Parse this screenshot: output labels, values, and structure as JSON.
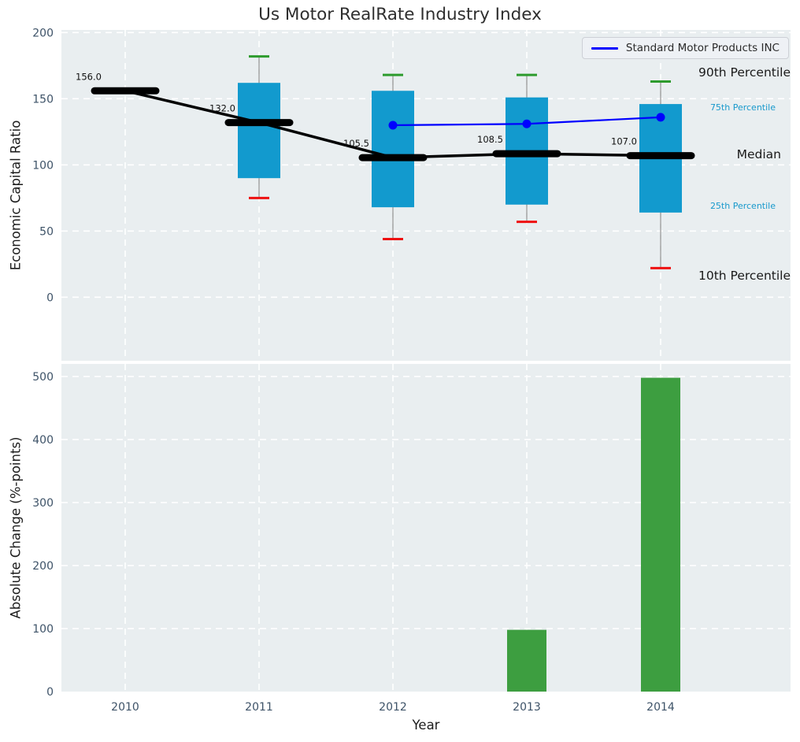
{
  "figure": {
    "title": "Us Motor RealRate Industry Index",
    "background": "#ffffff",
    "plot_background": "#e9eef0"
  },
  "colors": {
    "box_fill": "#129ace",
    "median_line": "#000000",
    "company_line": "#0000ff",
    "p90_cap": "#2d9b2d",
    "p10_cap": "#ee1111",
    "whisker": "#909090",
    "bar_fill": "#3d9e40",
    "grid": "#ffffff",
    "tick_label": "#3e5368",
    "annotation_small": "#1899cc",
    "annotation_large": "#1a1a1a"
  },
  "chart_data": [
    {
      "type": "box",
      "title": "Us Motor RealRate Industry Index",
      "ylabel": "Economic Capital Ratio",
      "categories": [
        "2010",
        "2011",
        "2012",
        "2013",
        "2014"
      ],
      "yticks": [
        0,
        50,
        100,
        150,
        200
      ],
      "ylim": [
        -48,
        202
      ],
      "grid": true,
      "legend": {
        "label": "Standard Motor Products INC",
        "position": "upper right"
      },
      "series": [
        {
          "name": "90th Percentile",
          "values": [
            null,
            182,
            168,
            168,
            163
          ]
        },
        {
          "name": "75th Percentile",
          "values": [
            null,
            162,
            156,
            151,
            146
          ]
        },
        {
          "name": "Median",
          "values": [
            156.0,
            132.0,
            105.5,
            108.5,
            107.0
          ]
        },
        {
          "name": "25th Percentile",
          "values": [
            null,
            90,
            68,
            70,
            64
          ]
        },
        {
          "name": "10th Percentile",
          "values": [
            null,
            75,
            44,
            57,
            22
          ]
        },
        {
          "name": "Standard Motor Products INC",
          "values": [
            null,
            null,
            130,
            131,
            136
          ]
        }
      ],
      "median_labels": [
        "156.0",
        "132.0",
        "105.5",
        "108.5",
        "107.0"
      ],
      "right_annotations": [
        {
          "text": "90th Percentile",
          "size": "large"
        },
        {
          "text": "75th Percentile",
          "size": "small"
        },
        {
          "text": "Median",
          "size": "large"
        },
        {
          "text": "25th Percentile",
          "size": "small"
        },
        {
          "text": "10th Percentile",
          "size": "large"
        }
      ]
    },
    {
      "type": "bar",
      "ylabel": "Absolute Change (%-points)",
      "xlabel": "Year",
      "categories": [
        "2010",
        "2011",
        "2012",
        "2013",
        "2014"
      ],
      "values": [
        0,
        0,
        0,
        98,
        498
      ],
      "yticks": [
        0,
        100,
        200,
        300,
        400,
        500
      ],
      "ylim": [
        0,
        520
      ],
      "grid": true
    }
  ]
}
